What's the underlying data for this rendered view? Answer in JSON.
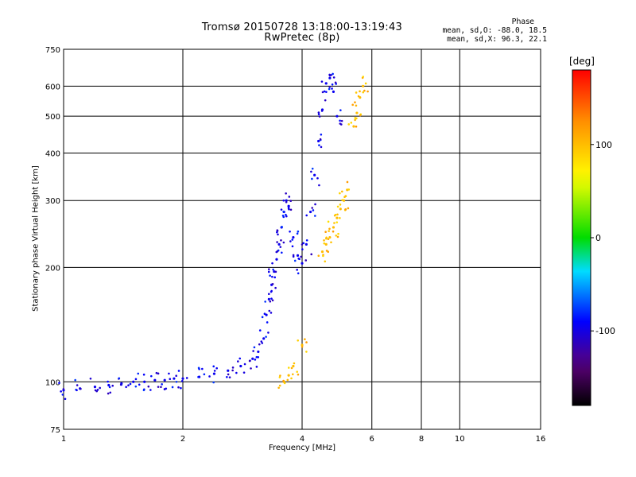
{
  "chart_data": {
    "type": "scatter",
    "title": "Tromsø 20150728 13:18:00-13:19:43",
    "subtitle": "RwPretec (8p)",
    "xlabel": "Frequency [MHz]",
    "ylabel": "Stationary phase Virtual Height [km]",
    "x_scale": "log",
    "y_scale": "log",
    "xlim": [
      1,
      16
    ],
    "ylim": [
      75,
      750
    ],
    "x_ticks": [
      1,
      2,
      4,
      6,
      8,
      10,
      16
    ],
    "y_ticks": [
      75,
      100,
      200,
      300,
      400,
      500,
      600,
      750
    ],
    "grid": true,
    "phase_stats": {
      "heading": "Phase",
      "o_mode": "mean, sd,O: -88.0, 18.5",
      "x_mode": "mean, sd,X:  96.3, 22.1"
    },
    "colorbar": {
      "unit": "[deg]",
      "range": [
        -180,
        180
      ],
      "ticks": [
        100,
        0,
        -100
      ],
      "colormap": "rainbow"
    },
    "series": [
      {
        "mode": "O",
        "phase_deg": -95,
        "points": [
          [
            1.0,
            95
          ],
          [
            1.1,
            96
          ],
          [
            1.2,
            97
          ],
          [
            1.3,
            98
          ],
          [
            1.4,
            99
          ],
          [
            1.5,
            100
          ],
          [
            1.6,
            100
          ],
          [
            1.7,
            101
          ],
          [
            1.8,
            101
          ],
          [
            1.9,
            102
          ],
          [
            2.0,
            102
          ],
          [
            2.2,
            103
          ],
          [
            2.4,
            105
          ],
          [
            2.6,
            107
          ],
          [
            2.8,
            110
          ],
          [
            3.0,
            115
          ],
          [
            3.1,
            120
          ],
          [
            3.2,
            130
          ],
          [
            3.25,
            150
          ],
          [
            3.3,
            165
          ],
          [
            3.35,
            180
          ],
          [
            3.4,
            195
          ],
          [
            3.45,
            210
          ],
          [
            3.5,
            230
          ],
          [
            3.55,
            255
          ],
          [
            3.6,
            280
          ],
          [
            3.65,
            300
          ],
          [
            3.7,
            290
          ],
          [
            3.8,
            240
          ],
          [
            3.9,
            215
          ],
          [
            4.0,
            205
          ],
          [
            4.1,
            230
          ],
          [
            4.2,
            280
          ],
          [
            4.3,
            350
          ],
          [
            4.4,
            430
          ],
          [
            4.5,
            520
          ],
          [
            4.6,
            610
          ],
          [
            4.7,
            630
          ],
          [
            4.8,
            580
          ],
          [
            4.9,
            500
          ]
        ]
      },
      {
        "mode": "X",
        "phase_deg": 100,
        "points": [
          [
            3.6,
            100
          ],
          [
            3.7,
            104
          ],
          [
            3.8,
            110
          ],
          [
            4.0,
            125
          ],
          [
            4.5,
            220
          ],
          [
            4.6,
            230
          ],
          [
            4.7,
            240
          ],
          [
            4.8,
            255
          ],
          [
            4.9,
            270
          ],
          [
            5.0,
            285
          ],
          [
            5.1,
            300
          ],
          [
            5.2,
            320
          ],
          [
            5.4,
            470
          ],
          [
            5.5,
            510
          ],
          [
            5.6,
            560
          ],
          [
            5.7,
            600
          ]
        ]
      }
    ]
  }
}
